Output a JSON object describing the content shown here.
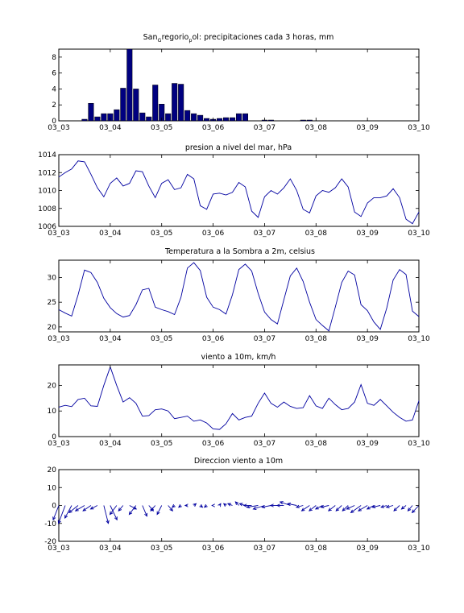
{
  "figure": {
    "background": "#ffffff",
    "line_color": "#0000a0",
    "bar_color": "#000080"
  },
  "chart_data": [
    {
      "type": "bar",
      "title": "San_Gregorio_pol: precipitaciones cada 3 horas, mm",
      "title_parts": {
        "a": "San",
        "b": "G",
        "c": "regorio",
        "d": "p",
        "e": "ol: precipitaciones cada 3 horas, mm"
      },
      "xlabel": "",
      "ylabel": "",
      "xlim": [
        0,
        7
      ],
      "ylim": [
        0,
        9
      ],
      "xticks": [
        0,
        1,
        2,
        3,
        4,
        5,
        6,
        7
      ],
      "xticklabels": [
        "03_03",
        "03_04",
        "03_05",
        "03_06",
        "03_07",
        "03_08",
        "03_09",
        "03_10"
      ],
      "yticks": [
        0,
        2,
        4,
        6,
        8
      ],
      "yticklabels": [
        "0",
        "2",
        "4",
        "6",
        "8"
      ],
      "x": [
        0.5,
        0.625,
        0.75,
        0.875,
        1.0,
        1.125,
        1.25,
        1.375,
        1.5,
        1.625,
        1.75,
        1.875,
        2.0,
        2.125,
        2.25,
        2.375,
        2.5,
        2.625,
        2.75,
        2.875,
        3.0,
        3.125,
        3.25,
        3.375,
        3.5,
        3.625,
        4.0,
        4.125,
        4.75,
        4.875
      ],
      "values": [
        0.2,
        2.2,
        0.5,
        0.9,
        0.9,
        1.4,
        4.1,
        9.0,
        4.0,
        1.0,
        0.5,
        4.5,
        2.1,
        0.9,
        4.7,
        4.6,
        1.3,
        0.9,
        0.7,
        0.3,
        0.2,
        0.3,
        0.4,
        0.4,
        0.9,
        0.9,
        0.1,
        0.1,
        0.1,
        0.1
      ]
    },
    {
      "type": "line",
      "title": "presion a nivel del mar, hPa",
      "xlabel": "",
      "ylabel": "",
      "xlim": [
        0,
        7
      ],
      "ylim": [
        1006,
        1014
      ],
      "xticks": [
        0,
        1,
        2,
        3,
        4,
        5,
        6,
        7
      ],
      "xticklabels": [
        "03_03",
        "03_04",
        "03_05",
        "03_06",
        "03_07",
        "03_08",
        "03_09",
        "03_10"
      ],
      "yticks": [
        1006,
        1008,
        1010,
        1012,
        1014
      ],
      "yticklabels": [
        "1006",
        "1008",
        "1010",
        "1012",
        "1014"
      ],
      "x": [
        0,
        0.125,
        0.25,
        0.375,
        0.5,
        0.625,
        0.75,
        0.875,
        1.0,
        1.125,
        1.25,
        1.375,
        1.5,
        1.625,
        1.75,
        1.875,
        2.0,
        2.125,
        2.25,
        2.375,
        2.5,
        2.625,
        2.75,
        2.875,
        3.0,
        3.125,
        3.25,
        3.375,
        3.5,
        3.625,
        3.75,
        3.875,
        4.0,
        4.125,
        4.25,
        4.375,
        4.5,
        4.625,
        4.75,
        4.875,
        5.0,
        5.125,
        5.25,
        5.375,
        5.5,
        5.625,
        5.75,
        5.875,
        6.0,
        6.125,
        6.25,
        6.375,
        6.5,
        6.625,
        6.75,
        6.875,
        7.0
      ],
      "values": [
        1011.5,
        1012.0,
        1012.4,
        1013.3,
        1013.2,
        1011.8,
        1010.3,
        1009.3,
        1010.8,
        1011.4,
        1010.5,
        1010.8,
        1012.2,
        1012.1,
        1010.5,
        1009.2,
        1010.8,
        1011.2,
        1010.1,
        1010.3,
        1011.8,
        1011.3,
        1008.3,
        1007.9,
        1009.6,
        1009.7,
        1009.5,
        1009.8,
        1010.9,
        1010.4,
        1007.7,
        1007.0,
        1009.3,
        1010.0,
        1009.6,
        1010.3,
        1011.3,
        1010.0,
        1007.9,
        1007.5,
        1009.4,
        1010.0,
        1009.8,
        1010.3,
        1011.3,
        1010.4,
        1007.6,
        1007.1,
        1008.6,
        1009.2,
        1009.2,
        1009.4,
        1010.2,
        1009.2,
        1006.8,
        1006.3,
        1007.6
      ]
    },
    {
      "type": "line",
      "title": "Temperatura a la Sombra a 2m, celsius",
      "xlabel": "",
      "ylabel": "",
      "xlim": [
        0,
        7
      ],
      "ylim": [
        19,
        33.5
      ],
      "xticks": [
        0,
        1,
        2,
        3,
        4,
        5,
        6,
        7
      ],
      "xticklabels": [
        "03_03",
        "03_04",
        "03_05",
        "03_06",
        "03_07",
        "03_08",
        "03_09",
        "03_10"
      ],
      "yticks": [
        20,
        25,
        30
      ],
      "yticklabels": [
        "20",
        "25",
        "30"
      ],
      "x": [
        0,
        0.125,
        0.25,
        0.375,
        0.5,
        0.625,
        0.75,
        0.875,
        1.0,
        1.125,
        1.25,
        1.375,
        1.5,
        1.625,
        1.75,
        1.875,
        2.0,
        2.125,
        2.25,
        2.375,
        2.5,
        2.625,
        2.75,
        2.875,
        3.0,
        3.125,
        3.25,
        3.375,
        3.5,
        3.625,
        3.75,
        3.875,
        4.0,
        4.125,
        4.25,
        4.375,
        4.5,
        4.625,
        4.75,
        4.875,
        5.0,
        5.125,
        5.25,
        5.375,
        5.5,
        5.625,
        5.75,
        5.875,
        6.0,
        6.125,
        6.25,
        6.375,
        6.5,
        6.625,
        6.75,
        6.875,
        7.0
      ],
      "values": [
        23.5,
        22.8,
        22.2,
        26.5,
        31.5,
        31.0,
        29.0,
        25.8,
        23.9,
        22.7,
        22.0,
        22.3,
        24.5,
        27.5,
        27.8,
        24.0,
        23.5,
        23.1,
        22.5,
        26.0,
        31.9,
        33.0,
        31.4,
        26.0,
        24.0,
        23.5,
        22.6,
        26.5,
        31.6,
        32.7,
        31.3,
        26.8,
        23.0,
        21.5,
        20.6,
        25.5,
        30.3,
        31.9,
        29.2,
        25.0,
        21.5,
        20.3,
        19.2,
        24.0,
        29.0,
        31.3,
        30.5,
        24.5,
        23.3,
        21.0,
        19.5,
        23.8,
        29.5,
        31.6,
        30.6,
        23.2,
        22.1
      ]
    },
    {
      "type": "line",
      "title": "viento a 10m, km/h",
      "xlabel": "",
      "ylabel": "",
      "xlim": [
        0,
        7
      ],
      "ylim": [
        0,
        28
      ],
      "xticks": [
        0,
        1,
        2,
        3,
        4,
        5,
        6,
        7
      ],
      "xticklabels": [
        "03_03",
        "03_04",
        "03_05",
        "03_06",
        "03_07",
        "03_08",
        "03_09",
        "03_10"
      ],
      "yticks": [
        0,
        10,
        20
      ],
      "yticklabels": [
        "0",
        "10",
        "20"
      ],
      "x": [
        0,
        0.125,
        0.25,
        0.375,
        0.5,
        0.625,
        0.75,
        0.875,
        1.0,
        1.125,
        1.25,
        1.375,
        1.5,
        1.625,
        1.75,
        1.875,
        2.0,
        2.125,
        2.25,
        2.375,
        2.5,
        2.625,
        2.75,
        2.875,
        3.0,
        3.125,
        3.25,
        3.375,
        3.5,
        3.625,
        3.75,
        3.875,
        4.0,
        4.125,
        4.25,
        4.375,
        4.5,
        4.625,
        4.75,
        4.875,
        5.0,
        5.125,
        5.25,
        5.375,
        5.5,
        5.625,
        5.75,
        5.875,
        6.0,
        6.125,
        6.25,
        6.375,
        6.5,
        6.625,
        6.75,
        6.875,
        7.0
      ],
      "values": [
        11.5,
        12.2,
        11.7,
        14.5,
        15.0,
        12.0,
        11.8,
        20.0,
        27.2,
        20.0,
        13.5,
        15.2,
        13.0,
        8.0,
        8.2,
        10.5,
        10.8,
        10.0,
        7.0,
        7.5,
        8.0,
        6.0,
        6.5,
        5.3,
        3.0,
        2.8,
        5.0,
        9.0,
        6.5,
        7.5,
        8.0,
        13.0,
        17.0,
        13.0,
        11.5,
        13.5,
        11.8,
        11.0,
        11.3,
        16.0,
        12.0,
        11.0,
        15.0,
        12.5,
        10.5,
        11.0,
        13.5,
        20.3,
        13.0,
        12.2,
        14.5,
        12.0,
        9.5,
        7.5,
        6.0,
        6.5,
        14.0
      ]
    },
    {
      "type": "quiver",
      "title": "Direccion viento a 10m",
      "xlabel": "",
      "ylabel": "",
      "xlim": [
        0,
        7
      ],
      "ylim": [
        -20,
        20
      ],
      "xticks": [
        0,
        1,
        2,
        3,
        4,
        5,
        6,
        7
      ],
      "xticklabels": [
        "03_03",
        "03_04",
        "03_05",
        "03_06",
        "03_07",
        "03_08",
        "03_09",
        "03_10"
      ],
      "yticks": [
        -20,
        -10,
        0,
        10,
        20
      ],
      "yticklabels": [
        "-20",
        "-10",
        "0",
        "10",
        "20"
      ],
      "x": [
        0,
        0.125,
        0.25,
        0.375,
        0.5,
        0.625,
        0.75,
        0.875,
        1.0,
        1.125,
        1.25,
        1.375,
        1.5,
        1.625,
        1.75,
        1.875,
        2.0,
        2.125,
        2.25,
        2.375,
        2.5,
        2.625,
        2.75,
        2.875,
        3.0,
        3.125,
        3.25,
        3.375,
        3.5,
        3.625,
        3.75,
        3.875,
        4.0,
        4.125,
        4.25,
        4.375,
        4.5,
        4.625,
        4.75,
        4.875,
        5.0,
        5.125,
        5.25,
        5.375,
        5.5,
        5.625,
        5.75,
        5.875,
        6.0,
        6.125,
        6.25,
        6.375,
        6.5,
        6.625,
        6.75,
        6.875,
        7.0
      ],
      "u": [
        -0.25,
        -0.3,
        -0.3,
        -0.4,
        -0.4,
        -0.35,
        -0.3,
        0.2,
        0.3,
        -0.3,
        -0.2,
        0.3,
        -0.3,
        0.2,
        0.2,
        -0.2,
        -0.2,
        0.2,
        -0.1,
        -0.1,
        -0.1,
        0.1,
        0.1,
        -0.1,
        -0.05,
        0.05,
        -0.1,
        -0.2,
        -0.15,
        -0.25,
        -0.35,
        -0.5,
        -0.5,
        -0.4,
        -0.3,
        -0.3,
        -0.45,
        -0.4,
        -0.3,
        -0.35,
        -0.3,
        -0.3,
        -0.35,
        -0.3,
        -0.25,
        -0.25,
        -0.35,
        -0.45,
        -0.4,
        -0.3,
        -0.35,
        -0.25,
        -0.3,
        -0.25,
        -0.2,
        -0.2,
        -0.3
      ],
      "v": [
        -8,
        -10,
        -7,
        -4,
        -3,
        -3,
        -2,
        -10,
        -8,
        -5,
        -3,
        -2,
        -5,
        -6,
        -3,
        -3,
        -5,
        -3,
        -1,
        -1,
        0,
        1,
        -1,
        -1,
        0,
        1,
        1,
        1,
        2,
        1,
        0,
        -1,
        -2,
        -1,
        0,
        0,
        2,
        1,
        -1,
        -3,
        -3,
        -2,
        -1,
        -3,
        -3,
        -3,
        -2,
        -4,
        -3,
        -2,
        -1,
        -1,
        -1,
        -3,
        -2,
        -3,
        -4
      ]
    }
  ]
}
